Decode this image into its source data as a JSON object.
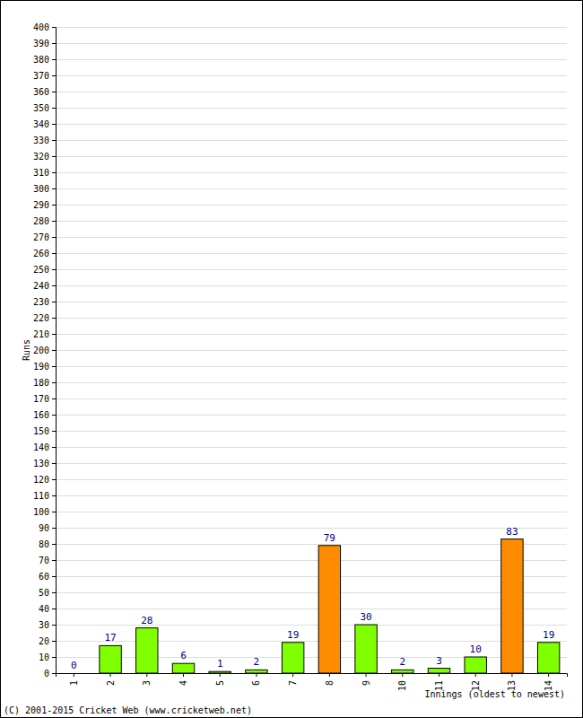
{
  "chart_data": {
    "type": "bar",
    "categories": [
      "1",
      "2",
      "3",
      "4",
      "5",
      "6",
      "7",
      "8",
      "9",
      "10",
      "11",
      "12",
      "13",
      "14"
    ],
    "values": [
      0,
      17,
      28,
      6,
      1,
      2,
      19,
      79,
      30,
      2,
      3,
      10,
      83,
      19
    ],
    "colors": [
      "#80ff00",
      "#80ff00",
      "#80ff00",
      "#80ff00",
      "#80ff00",
      "#80ff00",
      "#80ff00",
      "#ff8c00",
      "#80ff00",
      "#80ff00",
      "#80ff00",
      "#80ff00",
      "#ff8c00",
      "#80ff00"
    ],
    "x_label": "Innings (oldest to newest)",
    "y_label": "Runs",
    "annotations": [
      "(C) 2001-2015 Cricket Web (www.cricketweb.net)"
    ],
    "ylim": [
      0,
      400
    ],
    "yticks": [
      0,
      10,
      20,
      30,
      40,
      50,
      60,
      70,
      80,
      90,
      100,
      110,
      120,
      130,
      140,
      150,
      160,
      170,
      180,
      190,
      200,
      210,
      220,
      230,
      240,
      250,
      260,
      270,
      280,
      290,
      300,
      310,
      320,
      330,
      340,
      350,
      360,
      370,
      380,
      390,
      400
    ],
    "grid": true,
    "data_labels": true
  }
}
